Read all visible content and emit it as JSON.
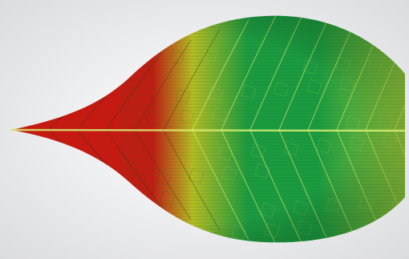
{
  "image": {
    "subject": "leaf-icon",
    "colors": {
      "background_center": "#ffffff",
      "background_edge": "#d9dadd",
      "tip_red": "#c41a12",
      "mid_yellow": "#b9bd22",
      "body_green": "#1c9b40",
      "base_lime": "#9ec93a",
      "vein_light": "#d7ee74",
      "vein_dark": "#2b3a12",
      "scan_line": "#0f6e2c"
    }
  }
}
